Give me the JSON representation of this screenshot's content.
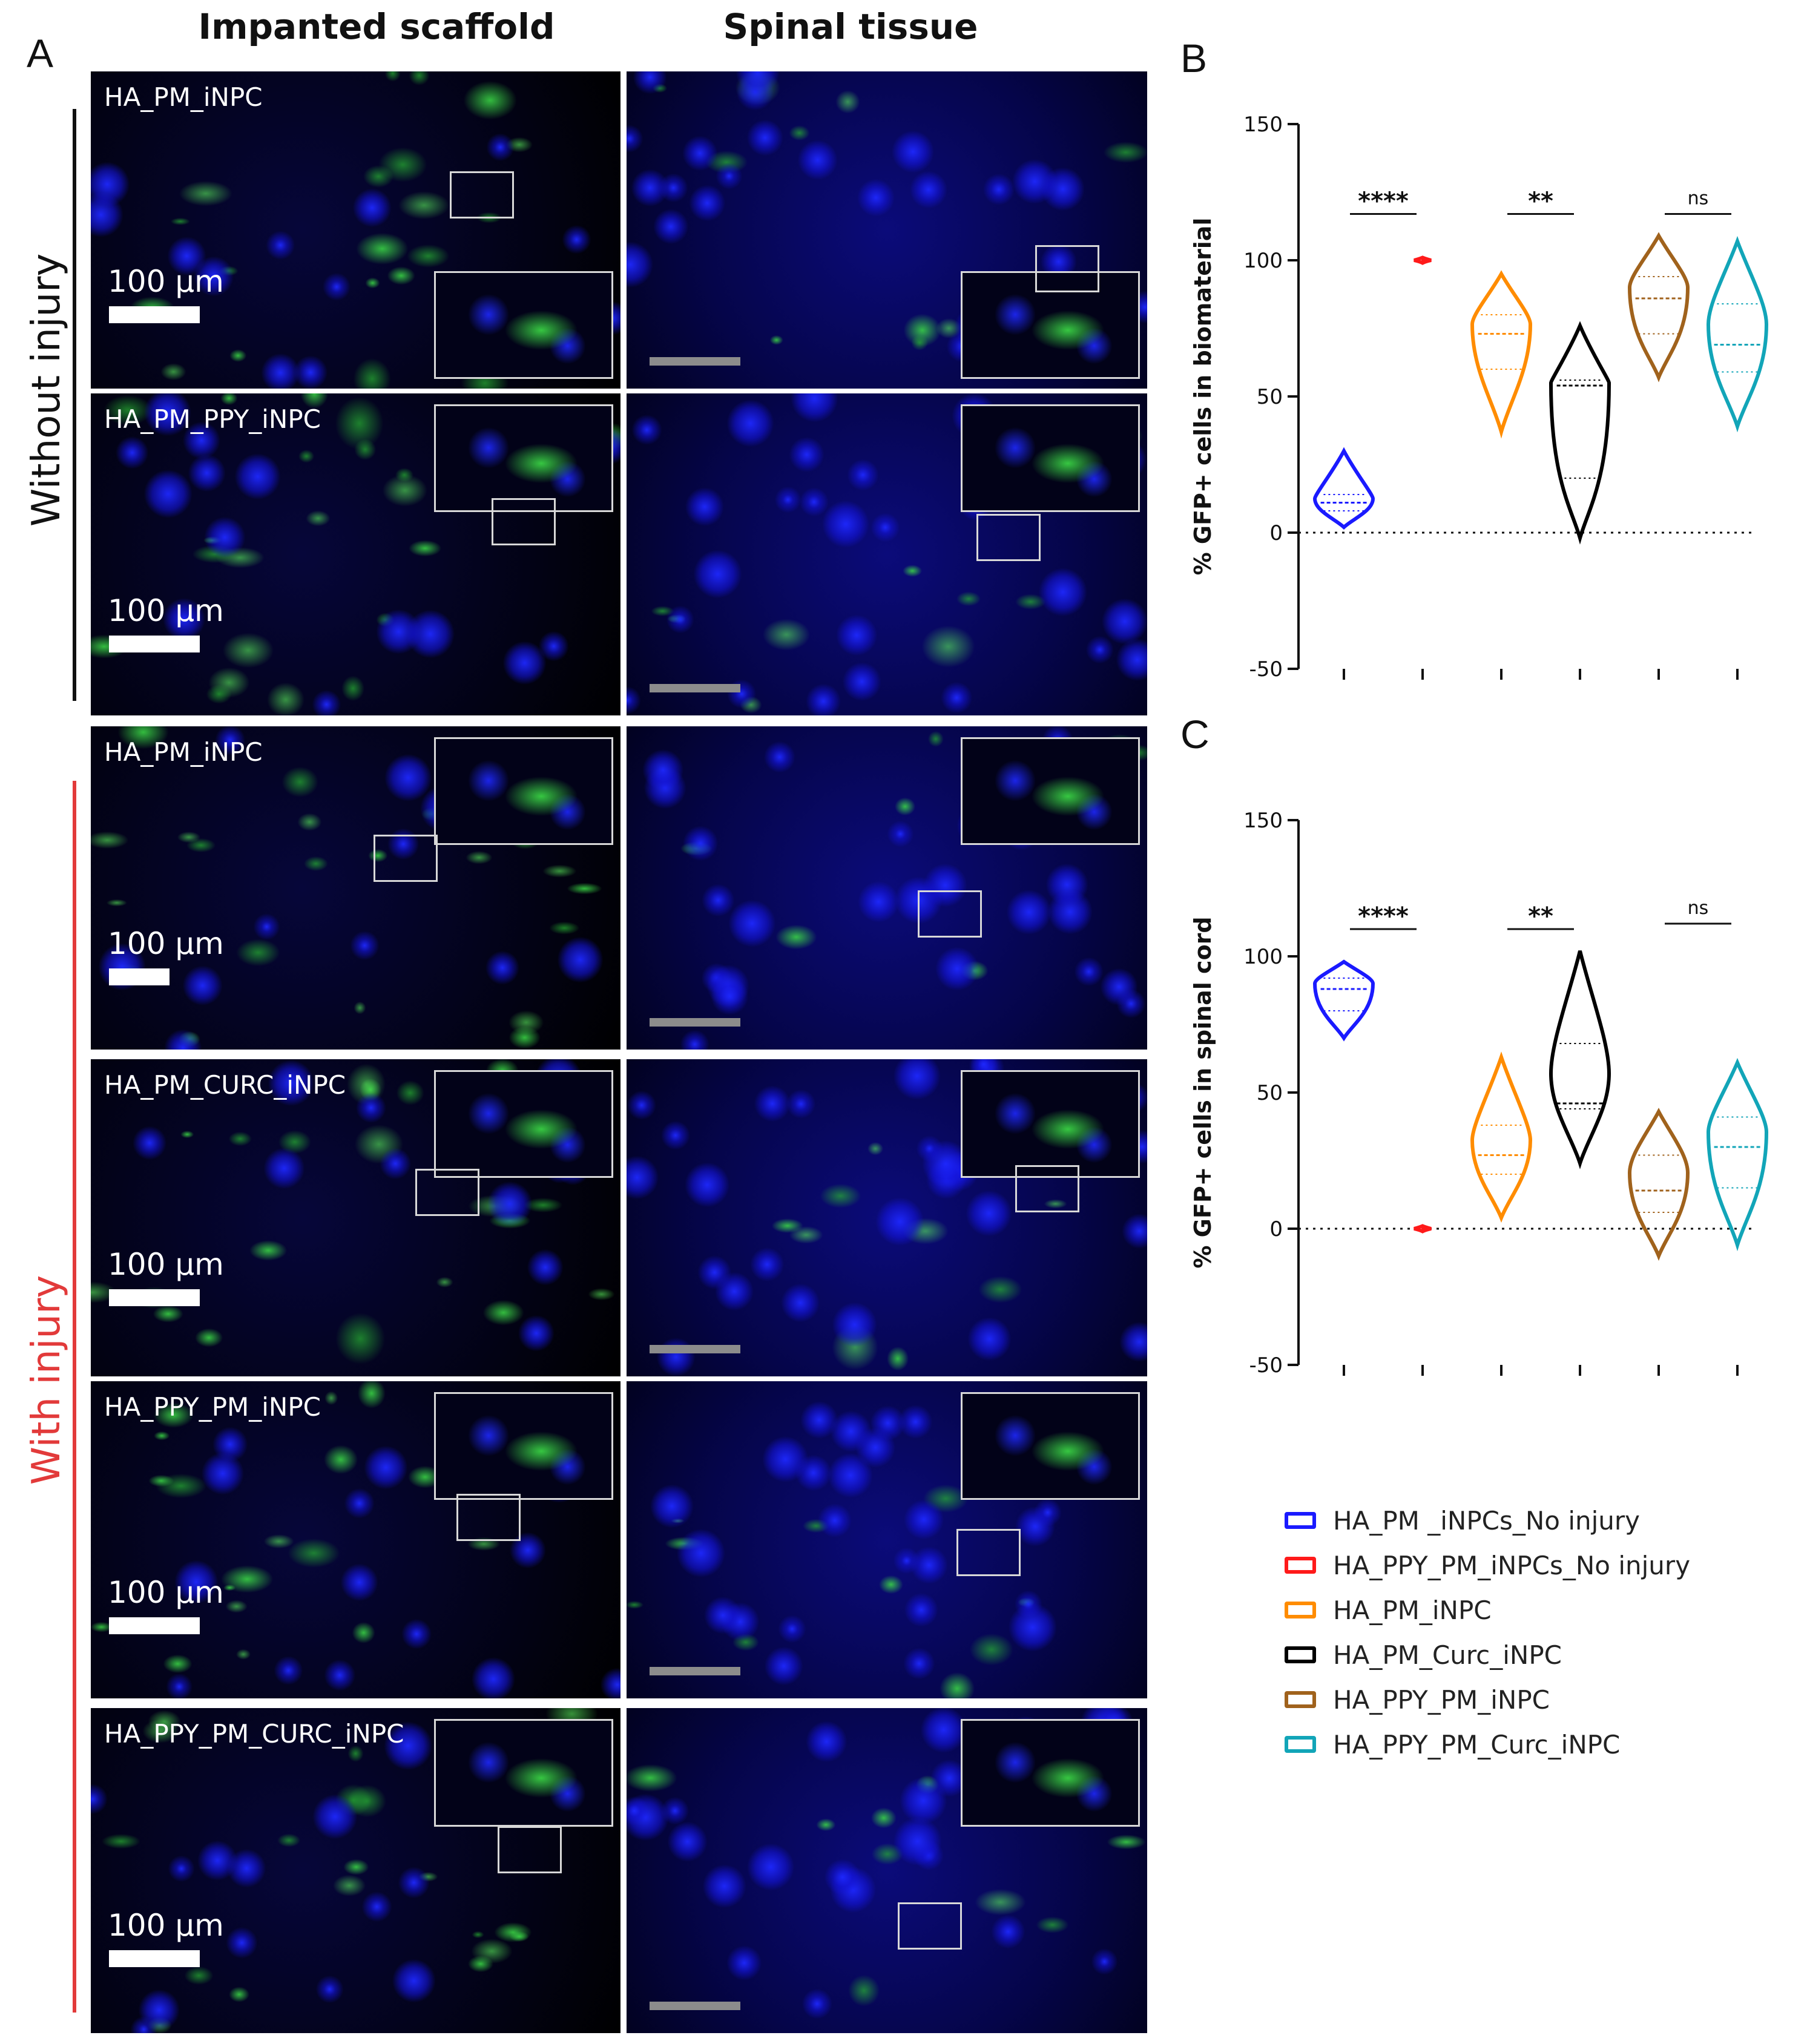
{
  "panel_labels": {
    "a": "A",
    "b": "B",
    "c": "C"
  },
  "column_headers": {
    "left": "Impanted scaffold",
    "right": "Spinal tissue"
  },
  "side_labels": {
    "top": "Without injury",
    "bottom": "With injury"
  },
  "colors": {
    "nucleus_blue": "#1a1aff",
    "gfp_green": "#35d43a",
    "with_injury_red": "#e23a3a",
    "without_injury_black": "#111111"
  },
  "microscopy": {
    "scale_text": "100 µm",
    "rows": [
      {
        "caption": "HA_PM_iNPC"
      },
      {
        "caption": "HA_PM_PPY_iNPC"
      },
      {
        "caption": "HA_PM_iNPC"
      },
      {
        "caption": "HA_PM_CURC_iNPC"
      },
      {
        "caption": "HA_PPY_PM_iNPC"
      },
      {
        "caption": "HA_PPY_PM_CURC_iNPC"
      }
    ]
  },
  "legend": [
    {
      "label": "HA_PM _iNPCs_No injury",
      "color": "#1a1aff"
    },
    {
      "label": "HA_PPY_PM_iNPCs_No injury",
      "color": "#ff1a1a"
    },
    {
      "label": "HA_PM_iNPC",
      "color": "#ff8c00"
    },
    {
      "label": "HA_PM_Curc_iNPC",
      "color": "#000000"
    },
    {
      "label": "HA_PPY_PM_iNPC",
      "color": "#a0621c"
    },
    {
      "label": "HA_PPY_PM_Curc_iNPC",
      "color": "#12a5b8"
    }
  ],
  "chart_data": [
    {
      "type": "violin",
      "panel": "B",
      "title": "",
      "xlabel": "",
      "ylabel": "% GFP+ cells in biomaterial",
      "ylim": [
        -50,
        150
      ],
      "yticks": [
        -50,
        0,
        50,
        100,
        150
      ],
      "zero_line": true,
      "series": [
        {
          "name": "HA_PM _iNPCs_No injury",
          "color": "#1a1aff",
          "median": 11,
          "q1": 8,
          "q3": 14,
          "min": 2,
          "max": 30
        },
        {
          "name": "HA_PPY_PM_iNPCs_No injury",
          "color": "#ff1a1a",
          "median": 100,
          "q1": 100,
          "q3": 100,
          "min": 99,
          "max": 101
        },
        {
          "name": "HA_PM_iNPC",
          "color": "#ff8c00",
          "median": 73,
          "q1": 60,
          "q3": 80,
          "min": 37,
          "max": 95
        },
        {
          "name": "HA_PM_Curc_iNPC",
          "color": "#000000",
          "median": 54,
          "q1": 20,
          "q3": 56,
          "min": -2,
          "max": 76
        },
        {
          "name": "HA_PPY_PM_iNPC",
          "color": "#a0621c",
          "median": 86,
          "q1": 73,
          "q3": 94,
          "min": 57,
          "max": 109
        },
        {
          "name": "HA_PPY_PM_Curc_iNPC",
          "color": "#12a5b8",
          "median": 69,
          "q1": 59,
          "q3": 84,
          "min": 39,
          "max": 107
        }
      ],
      "comparisons": [
        {
          "groups": [
            0,
            1
          ],
          "label": "****",
          "y": 117
        },
        {
          "groups": [
            2,
            3
          ],
          "label": "**",
          "y": 117
        },
        {
          "groups": [
            4,
            5
          ],
          "label": "ns",
          "y": 117
        }
      ]
    },
    {
      "type": "violin",
      "panel": "C",
      "title": "",
      "xlabel": "",
      "ylabel": "% GFP+ cells in spinal cord",
      "ylim": [
        -50,
        150
      ],
      "yticks": [
        -50,
        0,
        50,
        100,
        150
      ],
      "zero_line": true,
      "series": [
        {
          "name": "HA_PM _iNPCs_No injury",
          "color": "#1a1aff",
          "median": 88,
          "q1": 80,
          "q3": 92,
          "min": 70,
          "max": 98
        },
        {
          "name": "HA_PPY_PM_iNPCs_No injury",
          "color": "#ff1a1a",
          "median": 0,
          "q1": 0,
          "q3": 0,
          "min": -1,
          "max": 1
        },
        {
          "name": "HA_PM_iNPC",
          "color": "#ff8c00",
          "median": 27,
          "q1": 20,
          "q3": 38,
          "min": 4,
          "max": 63
        },
        {
          "name": "HA_PM_Curc_iNPC",
          "color": "#000000",
          "median": 46,
          "q1": 44,
          "q3": 68,
          "min": 24,
          "max": 102
        },
        {
          "name": "HA_PPY_PM_iNPC",
          "color": "#a0621c",
          "median": 14,
          "q1": 6,
          "q3": 27,
          "min": -10,
          "max": 43
        },
        {
          "name": "HA_PPY_PM_Curc_iNPC",
          "color": "#12a5b8",
          "median": 30,
          "q1": 15,
          "q3": 41,
          "min": -6,
          "max": 61
        }
      ],
      "comparisons": [
        {
          "groups": [
            0,
            1
          ],
          "label": "****",
          "y": 110
        },
        {
          "groups": [
            2,
            3
          ],
          "label": "**",
          "y": 110
        },
        {
          "groups": [
            4,
            5
          ],
          "label": "ns",
          "y": 112
        }
      ]
    }
  ]
}
